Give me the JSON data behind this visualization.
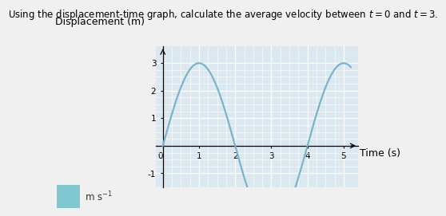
{
  "title": "Using the displacement-time graph, calculate the average velocity between $t = 0$ and $t = 3$.",
  "ylabel": "Displacement (m)",
  "xlabel": "Time (s)",
  "xlim": [
    -0.2,
    5.4
  ],
  "ylim": [
    -1.5,
    3.6
  ],
  "xticks": [
    0,
    1,
    2,
    3,
    4,
    5
  ],
  "yticks": [
    -1,
    1,
    2,
    3
  ],
  "amplitude": 3,
  "period": 4,
  "curve_color": "#7ab3cc",
  "bg_color": "#f0f0f0",
  "plot_bg_color": "#dce8ef",
  "grid_color": "#ffffff",
  "answer_box_color": "#80c8d0",
  "title_fontsize": 8.5,
  "label_fontsize": 9,
  "tick_fontsize": 7.5
}
